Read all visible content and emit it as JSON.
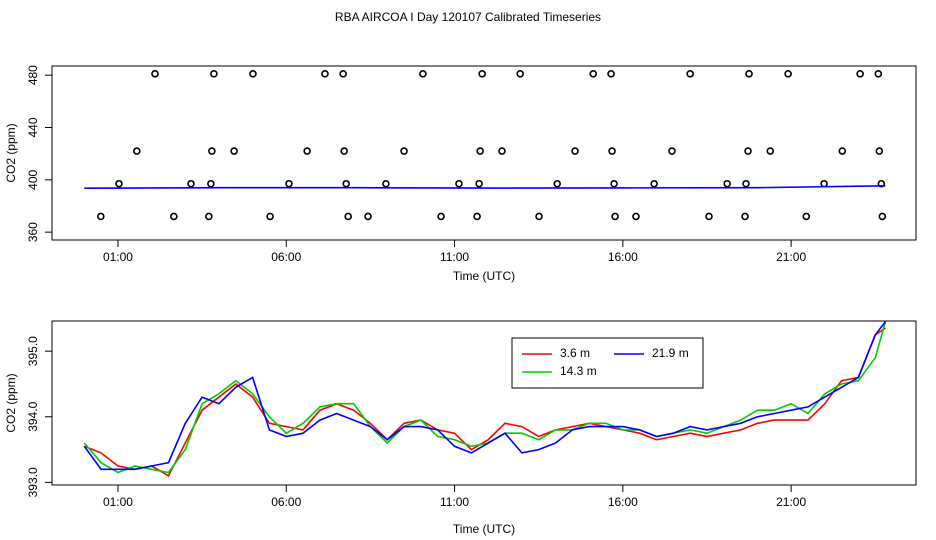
{
  "chart_data": [
    {
      "type": "scatter",
      "title": "RBA AIRCOA I  Day 120107  Calibrated Timeseries",
      "x_label": "Time (UTC)",
      "y_label": "CO2 (ppm)",
      "xlim": [
        -0.96,
        24.71
      ],
      "ylim": [
        354,
        487
      ],
      "xticks": [
        {
          "value": 1,
          "label": "01:00"
        },
        {
          "value": 6,
          "label": "06:00"
        },
        {
          "value": 11,
          "label": "11:00"
        },
        {
          "value": 16,
          "label": "16:00"
        },
        {
          "value": 21,
          "label": "21:00"
        }
      ],
      "yticks": [
        360,
        400,
        440,
        480
      ],
      "series": [
        {
          "style": "points",
          "color": "#000000",
          "x": [
            0.49,
            1.03,
            1.56,
            2.1,
            2.66,
            3.17,
            3.7,
            3.76,
            3.79,
            3.85,
            4.45,
            5.01,
            5.52,
            6.08,
            6.62,
            7.15,
            7.69,
            7.72,
            7.78,
            7.84,
            8.43,
            8.96,
            9.5,
            10.06,
            10.6,
            11.13,
            11.67,
            11.73,
            11.76,
            11.82,
            12.41,
            12.95,
            13.51,
            14.05,
            14.58,
            15.12,
            15.65,
            15.68,
            15.74,
            15.77,
            16.39,
            16.93,
            17.46,
            18.0,
            18.56,
            19.1,
            19.63,
            19.66,
            19.72,
            19.75,
            20.38,
            20.91,
            21.45,
            21.98,
            22.52,
            23.05,
            23.59,
            23.62,
            23.68,
            23.71
          ],
          "values": [
            372,
            397,
            422,
            481,
            372,
            397,
            372,
            397,
            422,
            481,
            422,
            481,
            372,
            397,
            422,
            481,
            481,
            422,
            397,
            372,
            372,
            397,
            422,
            481,
            372,
            397,
            372,
            397,
            422,
            481,
            422,
            481,
            372,
            397,
            422,
            481,
            481,
            422,
            397,
            372,
            372,
            397,
            422,
            481,
            372,
            397,
            372,
            397,
            422,
            481,
            422,
            481,
            372,
            397,
            422,
            481,
            481,
            422,
            397,
            372
          ]
        },
        {
          "style": "line",
          "color": "#0000ff",
          "x": [
            0,
            4,
            8,
            12,
            16,
            20,
            23.8
          ],
          "values": [
            393.6,
            394.0,
            394.0,
            393.7,
            393.8,
            394.0,
            395.4
          ]
        }
      ]
    },
    {
      "type": "line",
      "x_label": "Time (UTC)",
      "y_label": "CO2 (ppm)",
      "xlim": [
        -0.96,
        24.71
      ],
      "ylim": [
        392.96,
        395.46
      ],
      "xticks": [
        {
          "value": 1,
          "label": "01:00"
        },
        {
          "value": 6,
          "label": "06:00"
        },
        {
          "value": 11,
          "label": "11:00"
        },
        {
          "value": 16,
          "label": "16:00"
        },
        {
          "value": 21,
          "label": "21:00"
        }
      ],
      "yticks": [
        {
          "value": 393,
          "label": "393.0"
        },
        {
          "value": 394,
          "label": "394.0"
        },
        {
          "value": 395,
          "label": "395.0"
        }
      ],
      "legend": "top-right",
      "x": [
        0,
        0.5,
        1,
        1.5,
        2,
        2.5,
        3,
        3.5,
        4,
        4.5,
        5,
        5.5,
        6,
        6.5,
        7,
        7.5,
        8,
        8.5,
        9,
        9.5,
        10,
        10.5,
        11,
        11.5,
        12,
        12.5,
        13,
        13.5,
        14,
        14.5,
        15,
        15.5,
        16,
        16.5,
        17,
        17.5,
        18,
        18.5,
        19,
        19.5,
        20,
        20.5,
        21,
        21.5,
        22,
        22.5,
        23,
        23.5,
        23.8
      ],
      "series": [
        {
          "name": "3.6 m",
          "color": "#ff0000",
          "values": [
            393.55,
            393.45,
            393.25,
            393.2,
            393.25,
            393.1,
            393.6,
            394.1,
            394.3,
            394.5,
            394.3,
            393.9,
            393.85,
            393.8,
            394.1,
            394.2,
            394.1,
            393.9,
            393.65,
            393.9,
            393.95,
            393.8,
            393.75,
            393.5,
            393.65,
            393.9,
            393.85,
            393.7,
            393.8,
            393.85,
            393.9,
            393.85,
            393.8,
            393.75,
            393.65,
            393.7,
            393.75,
            393.7,
            393.75,
            393.8,
            393.9,
            393.95,
            393.95,
            393.95,
            394.2,
            394.55,
            394.6,
            395.25,
            395.35
          ]
        },
        {
          "name": "14.3 m",
          "color": "#00cd00",
          "values": [
            393.6,
            393.3,
            393.15,
            393.25,
            393.2,
            393.15,
            393.5,
            394.2,
            394.35,
            394.55,
            394.35,
            394.0,
            393.75,
            393.9,
            394.15,
            394.2,
            394.2,
            393.85,
            393.6,
            393.85,
            393.95,
            393.7,
            393.65,
            393.55,
            393.6,
            393.75,
            393.75,
            393.65,
            393.8,
            393.8,
            393.9,
            393.9,
            393.8,
            393.8,
            393.7,
            393.75,
            393.8,
            393.75,
            393.85,
            393.95,
            394.1,
            394.1,
            394.2,
            394.05,
            394.35,
            394.5,
            394.55,
            394.9,
            395.45
          ]
        },
        {
          "name": "21.9 m",
          "color": "#0000ff",
          "values": [
            393.55,
            393.2,
            393.2,
            393.2,
            393.25,
            393.3,
            393.9,
            394.3,
            394.2,
            394.45,
            394.6,
            393.8,
            393.7,
            393.75,
            393.95,
            394.05,
            393.95,
            393.85,
            393.65,
            393.85,
            393.85,
            393.8,
            393.55,
            393.45,
            393.6,
            393.75,
            393.45,
            393.5,
            393.6,
            393.8,
            393.85,
            393.85,
            393.85,
            393.8,
            393.7,
            393.75,
            393.85,
            393.8,
            393.85,
            393.9,
            394.0,
            394.05,
            394.1,
            394.15,
            394.3,
            394.45,
            394.6,
            395.25,
            395.45
          ]
        }
      ]
    }
  ]
}
